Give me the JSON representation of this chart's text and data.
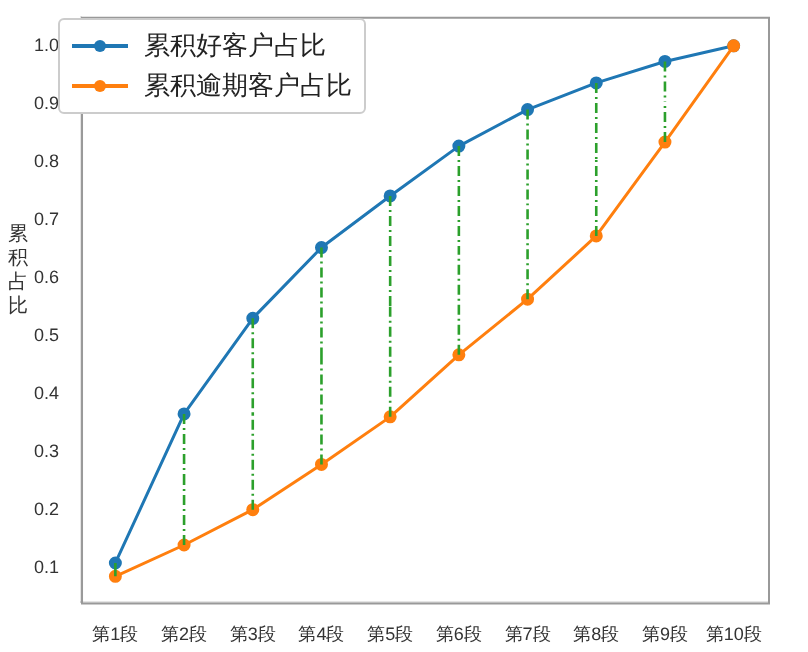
{
  "chart_data": {
    "type": "line",
    "ylabel": "累积占比",
    "categories": [
      "第1段",
      "第2段",
      "第3段",
      "第4段",
      "第5段",
      "第6段",
      "第7段",
      "第8段",
      "第9段",
      "第10段"
    ],
    "series": [
      {
        "name": "累积好客户占比",
        "color": "#1f77b4",
        "values": [
          0.108,
          0.365,
          0.53,
          0.652,
          0.741,
          0.827,
          0.89,
          0.936,
          0.973,
          1.0
        ],
        "errors": [
          [
            0.085,
            0.108
          ],
          [
            0.139,
            0.365
          ],
          [
            0.2,
            0.53
          ],
          [
            0.278,
            0.652
          ],
          [
            0.36,
            0.741
          ],
          [
            0.467,
            0.827
          ],
          [
            0.563,
            0.89
          ],
          [
            0.672,
            0.936
          ],
          [
            0.834,
            0.973
          ],
          null
        ]
      },
      {
        "name": "累积逾期客户占比",
        "color": "#ff7f0e",
        "values": [
          0.085,
          0.139,
          0.2,
          0.278,
          0.36,
          0.467,
          0.563,
          0.672,
          0.834,
          1.0
        ]
      }
    ],
    "ylim": [
      0.04,
      1.05
    ],
    "yticks": [
      0.1,
      0.2,
      0.3,
      0.4,
      0.5,
      0.6,
      0.7,
      0.8,
      0.9,
      {
        "value": 1.0,
        "label": "1.0"
      }
    ],
    "grid": false,
    "legend": "top left",
    "marker": "circle",
    "line_style": "solid"
  }
}
